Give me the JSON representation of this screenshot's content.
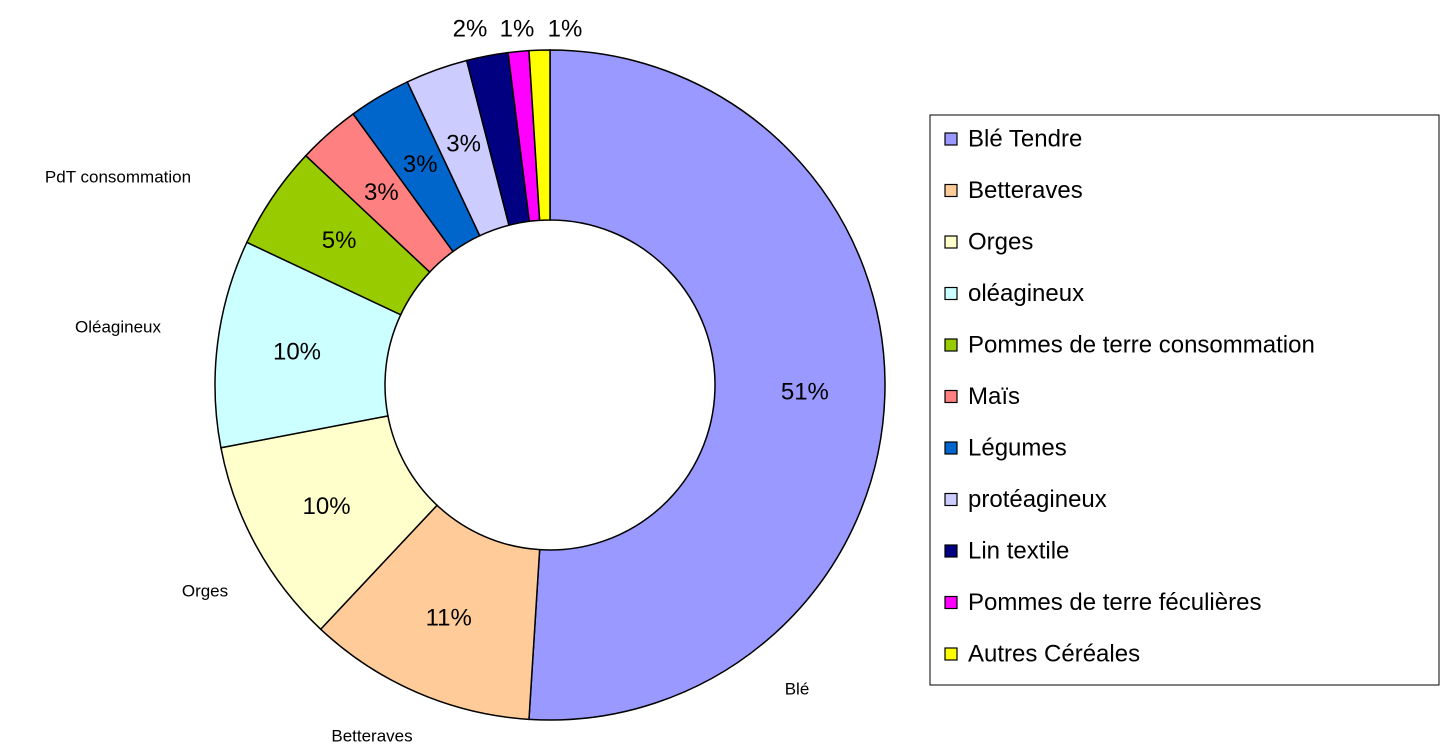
{
  "chart_data": {
    "type": "donut",
    "categories": [
      "Blé Tendre",
      "Betteraves",
      "Orges",
      "oléagineux",
      "Pommes de terre consommation",
      "Maïs",
      "Légumes",
      "protéagineux",
      "Lin textile",
      "Pommes de terre féculières",
      "Autres Céréales"
    ],
    "values": [
      51,
      11,
      10,
      10,
      5,
      3,
      3,
      3,
      2,
      1,
      1
    ],
    "value_labels": [
      "51%",
      "11%",
      "10%",
      "10%",
      "5%",
      "3%",
      "3%",
      "3%",
      "2%",
      "1%",
      "1%"
    ],
    "colors": [
      "#9999ff",
      "#ffcc99",
      "#ffffcc",
      "#ccffff",
      "#99cc00",
      "#ff8080",
      "#0066cc",
      "#ccccff",
      "#000080",
      "#ff00ff",
      "#ffff00"
    ],
    "outer_labels": [
      "Blé",
      "Betteraves",
      "Orges",
      "Oléagineux",
      "PdT consommation",
      null,
      null,
      null,
      null,
      null,
      null
    ],
    "legend": "right"
  }
}
